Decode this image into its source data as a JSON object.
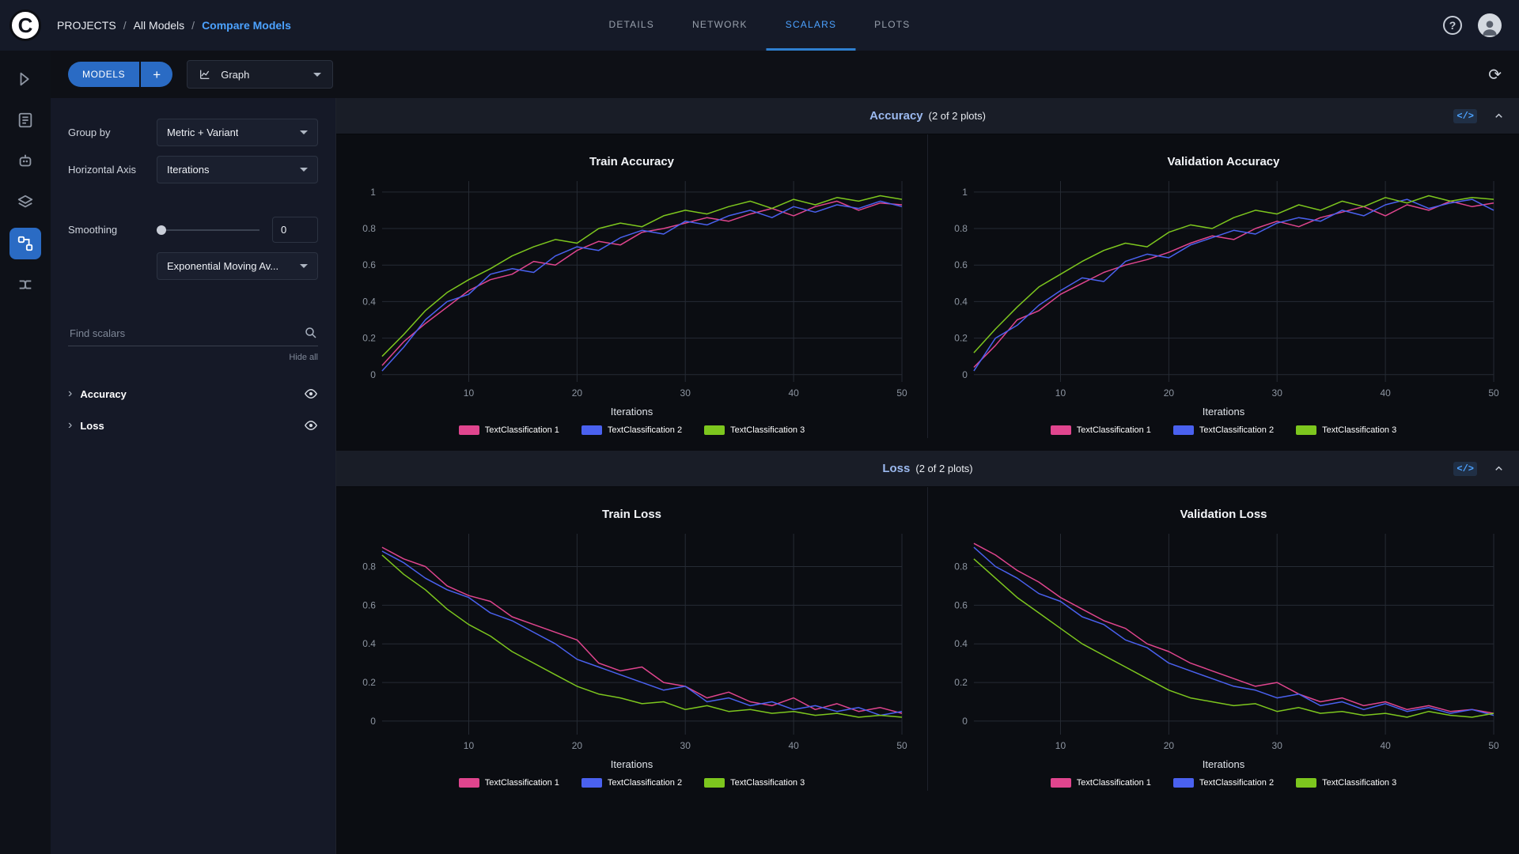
{
  "topbar": {
    "logo_letter": "C",
    "breadcrumb": {
      "separator": "/",
      "items": [
        {
          "label": "PROJECTS"
        },
        {
          "label": "All Models"
        },
        {
          "label": "Compare Models"
        }
      ]
    },
    "tabs": [
      {
        "label": "DETAILS"
      },
      {
        "label": "NETWORK"
      },
      {
        "label": "SCALARS"
      },
      {
        "label": "PLOTS"
      }
    ],
    "active_tab": "SCALARS"
  },
  "toolbar": {
    "models_button": "MODELS",
    "add_button": "+",
    "view_dropdown": "Graph"
  },
  "sidebar": {
    "group_by_label": "Group by",
    "group_by_value": "Metric + Variant",
    "horizontal_axis_label": "Horizontal Axis",
    "horizontal_axis_value": "Iterations",
    "smoothing_label": "Smoothing",
    "smoothing_value": "0",
    "smoothing_method": "Exponential Moving Av...",
    "search_placeholder": "Find scalars",
    "hide_all_label": "Hide all",
    "sections": [
      {
        "label": "Accuracy"
      },
      {
        "label": "Loss"
      }
    ]
  },
  "rail": {
    "items": [
      "quick-start",
      "reports",
      "workers",
      "datasets",
      "experiments",
      "pipelines"
    ],
    "active_index": 4
  },
  "sections": [
    {
      "title": "Accuracy",
      "count": "(2 of 2 plots)"
    },
    {
      "title": "Loss",
      "count": "(2 of 2 plots)"
    }
  ],
  "icons": {
    "help_glyph": "?",
    "refresh_glyph": "⟳",
    "code_glyph": "</>",
    "chevron_glyph": "›"
  },
  "colors": {
    "accent": "#4ca2ff",
    "series_pink": "#e0458e",
    "series_blue": "#4a61ef",
    "series_green": "#7dc61e",
    "grid": "#262b34"
  },
  "chart_data": [
    {
      "type": "line",
      "title": "Train Accuracy",
      "xlabel": "Iterations",
      "grid": true,
      "legend_position": "bottom",
      "x": [
        2,
        4,
        6,
        8,
        10,
        12,
        14,
        16,
        18,
        20,
        22,
        24,
        26,
        28,
        30,
        32,
        34,
        36,
        38,
        40,
        42,
        44,
        46,
        48,
        50
      ],
      "xticks": [
        10,
        20,
        30,
        40,
        50
      ],
      "yticks": [
        0,
        0.2,
        0.4,
        0.6,
        0.8,
        1
      ],
      "xlim": [
        2,
        50
      ],
      "ylim": [
        -0.04,
        1.06
      ],
      "series": [
        {
          "name": "TextClassification 1",
          "color": "#e0458e",
          "values": [
            0.05,
            0.18,
            0.28,
            0.37,
            0.46,
            0.52,
            0.55,
            0.62,
            0.6,
            0.68,
            0.73,
            0.71,
            0.78,
            0.8,
            0.83,
            0.86,
            0.84,
            0.88,
            0.91,
            0.87,
            0.92,
            0.95,
            0.9,
            0.94,
            0.93
          ]
        },
        {
          "name": "TextClassification 2",
          "color": "#4a61ef",
          "values": [
            0.02,
            0.15,
            0.3,
            0.4,
            0.44,
            0.55,
            0.58,
            0.56,
            0.65,
            0.7,
            0.68,
            0.75,
            0.79,
            0.77,
            0.84,
            0.82,
            0.87,
            0.9,
            0.86,
            0.92,
            0.89,
            0.93,
            0.91,
            0.95,
            0.92
          ]
        },
        {
          "name": "TextClassification 3",
          "color": "#7dc61e",
          "values": [
            0.1,
            0.22,
            0.35,
            0.45,
            0.52,
            0.58,
            0.65,
            0.7,
            0.74,
            0.72,
            0.8,
            0.83,
            0.81,
            0.87,
            0.9,
            0.88,
            0.92,
            0.95,
            0.91,
            0.96,
            0.93,
            0.97,
            0.95,
            0.98,
            0.96
          ]
        }
      ]
    },
    {
      "type": "line",
      "title": "Validation Accuracy",
      "xlabel": "Iterations",
      "grid": true,
      "legend_position": "bottom",
      "x": [
        2,
        4,
        6,
        8,
        10,
        12,
        14,
        16,
        18,
        20,
        22,
        24,
        26,
        28,
        30,
        32,
        34,
        36,
        38,
        40,
        42,
        44,
        46,
        48,
        50
      ],
      "xticks": [
        10,
        20,
        30,
        40,
        50
      ],
      "yticks": [
        0,
        0.2,
        0.4,
        0.6,
        0.8,
        1
      ],
      "xlim": [
        2,
        50
      ],
      "ylim": [
        -0.04,
        1.06
      ],
      "series": [
        {
          "name": "TextClassification 1",
          "color": "#e0458e",
          "values": [
            0.04,
            0.16,
            0.3,
            0.35,
            0.44,
            0.5,
            0.56,
            0.6,
            0.63,
            0.67,
            0.72,
            0.76,
            0.74,
            0.8,
            0.84,
            0.81,
            0.86,
            0.89,
            0.92,
            0.87,
            0.93,
            0.9,
            0.95,
            0.92,
            0.94
          ]
        },
        {
          "name": "TextClassification 2",
          "color": "#4a61ef",
          "values": [
            0.02,
            0.2,
            0.27,
            0.38,
            0.46,
            0.53,
            0.51,
            0.62,
            0.66,
            0.64,
            0.71,
            0.75,
            0.79,
            0.77,
            0.83,
            0.86,
            0.84,
            0.9,
            0.87,
            0.93,
            0.96,
            0.91,
            0.94,
            0.96,
            0.9
          ]
        },
        {
          "name": "TextClassification 3",
          "color": "#7dc61e",
          "values": [
            0.12,
            0.25,
            0.37,
            0.48,
            0.55,
            0.62,
            0.68,
            0.72,
            0.7,
            0.78,
            0.82,
            0.8,
            0.86,
            0.9,
            0.88,
            0.93,
            0.9,
            0.95,
            0.92,
            0.97,
            0.94,
            0.98,
            0.95,
            0.97,
            0.96
          ]
        }
      ]
    },
    {
      "type": "line",
      "title": "Train Loss",
      "xlabel": "Iterations",
      "grid": true,
      "legend_position": "bottom",
      "x": [
        2,
        4,
        6,
        8,
        10,
        12,
        14,
        16,
        18,
        20,
        22,
        24,
        26,
        28,
        30,
        32,
        34,
        36,
        38,
        40,
        42,
        44,
        46,
        48,
        50
      ],
      "xticks": [
        10,
        20,
        30,
        40,
        50
      ],
      "yticks": [
        0,
        0.2,
        0.4,
        0.6,
        0.8
      ],
      "xlim": [
        2,
        50
      ],
      "ylim": [
        -0.07,
        0.97
      ],
      "series": [
        {
          "name": "TextClassification 1",
          "color": "#e0458e",
          "values": [
            0.9,
            0.84,
            0.8,
            0.7,
            0.65,
            0.62,
            0.54,
            0.5,
            0.46,
            0.42,
            0.3,
            0.26,
            0.28,
            0.2,
            0.18,
            0.12,
            0.15,
            0.1,
            0.08,
            0.12,
            0.06,
            0.09,
            0.05,
            0.07,
            0.04
          ]
        },
        {
          "name": "TextClassification 2",
          "color": "#4a61ef",
          "values": [
            0.88,
            0.82,
            0.74,
            0.68,
            0.64,
            0.56,
            0.52,
            0.46,
            0.4,
            0.32,
            0.28,
            0.24,
            0.2,
            0.16,
            0.18,
            0.1,
            0.12,
            0.08,
            0.1,
            0.06,
            0.08,
            0.05,
            0.07,
            0.03,
            0.05
          ]
        },
        {
          "name": "TextClassification 3",
          "color": "#7dc61e",
          "values": [
            0.86,
            0.76,
            0.68,
            0.58,
            0.5,
            0.44,
            0.36,
            0.3,
            0.24,
            0.18,
            0.14,
            0.12,
            0.09,
            0.1,
            0.06,
            0.08,
            0.05,
            0.06,
            0.04,
            0.05,
            0.03,
            0.04,
            0.02,
            0.03,
            0.02
          ]
        }
      ]
    },
    {
      "type": "line",
      "title": "Validation Loss",
      "xlabel": "Iterations",
      "grid": true,
      "legend_position": "bottom",
      "x": [
        2,
        4,
        6,
        8,
        10,
        12,
        14,
        16,
        18,
        20,
        22,
        24,
        26,
        28,
        30,
        32,
        34,
        36,
        38,
        40,
        42,
        44,
        46,
        48,
        50
      ],
      "xticks": [
        10,
        20,
        30,
        40,
        50
      ],
      "yticks": [
        0,
        0.2,
        0.4,
        0.6,
        0.8
      ],
      "xlim": [
        2,
        50
      ],
      "ylim": [
        -0.07,
        0.97
      ],
      "series": [
        {
          "name": "TextClassification 1",
          "color": "#e0458e",
          "values": [
            0.92,
            0.86,
            0.78,
            0.72,
            0.64,
            0.58,
            0.52,
            0.48,
            0.4,
            0.36,
            0.3,
            0.26,
            0.22,
            0.18,
            0.2,
            0.14,
            0.1,
            0.12,
            0.08,
            0.1,
            0.06,
            0.08,
            0.05,
            0.06,
            0.04
          ]
        },
        {
          "name": "TextClassification 2",
          "color": "#4a61ef",
          "values": [
            0.9,
            0.8,
            0.74,
            0.66,
            0.62,
            0.54,
            0.5,
            0.42,
            0.38,
            0.3,
            0.26,
            0.22,
            0.18,
            0.16,
            0.12,
            0.14,
            0.08,
            0.1,
            0.06,
            0.09,
            0.05,
            0.07,
            0.04,
            0.06,
            0.03
          ]
        },
        {
          "name": "TextClassification 3",
          "color": "#7dc61e",
          "values": [
            0.84,
            0.74,
            0.64,
            0.56,
            0.48,
            0.4,
            0.34,
            0.28,
            0.22,
            0.16,
            0.12,
            0.1,
            0.08,
            0.09,
            0.05,
            0.07,
            0.04,
            0.05,
            0.03,
            0.04,
            0.02,
            0.05,
            0.03,
            0.02,
            0.04
          ]
        }
      ]
    }
  ]
}
